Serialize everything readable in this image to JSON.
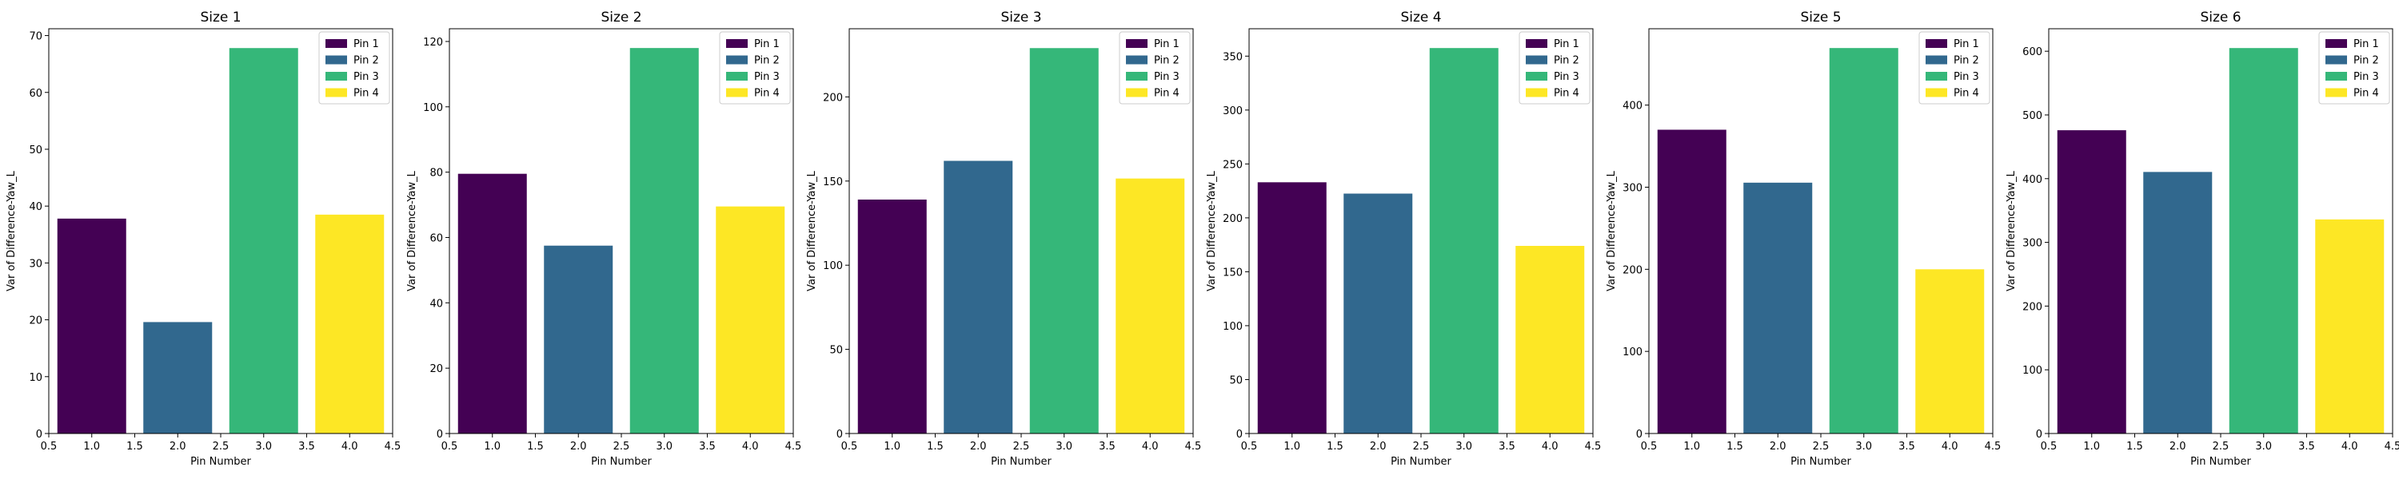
{
  "chart_data": [
    {
      "type": "bar",
      "title": "Size 1",
      "xlabel": "Pin Number",
      "ylabel": "Var of Difference-Yaw_L",
      "x": [
        1,
        2,
        3,
        4
      ],
      "values": [
        37.8,
        19.6,
        67.8,
        38.5
      ],
      "xlim": [
        0.5,
        4.5
      ],
      "ylim": [
        0,
        71.2
      ],
      "xticks": [
        "0.5",
        "1.0",
        "1.5",
        "2.0",
        "2.5",
        "3.0",
        "3.5",
        "4.0",
        "4.5"
      ],
      "yticks": [
        0,
        10,
        20,
        30,
        40,
        50,
        60,
        70
      ],
      "legend": [
        "Pin 1",
        "Pin 2",
        "Pin 3",
        "Pin 4"
      ],
      "legend_position": "top-right"
    },
    {
      "type": "bar",
      "title": "Size 2",
      "xlabel": "Pin Number",
      "ylabel": "Var of Difference-Yaw_L",
      "x": [
        1,
        2,
        3,
        4
      ],
      "values": [
        79.5,
        57.5,
        118.0,
        69.5
      ],
      "xlim": [
        0.5,
        4.5
      ],
      "ylim": [
        0,
        123.9
      ],
      "xticks": [
        "0.5",
        "1.0",
        "1.5",
        "2.0",
        "2.5",
        "3.0",
        "3.5",
        "4.0",
        "4.5"
      ],
      "yticks": [
        0,
        20,
        40,
        60,
        80,
        100,
        120
      ],
      "legend": [
        "Pin 1",
        "Pin 2",
        "Pin 3",
        "Pin 4"
      ],
      "legend_position": "top-right"
    },
    {
      "type": "bar",
      "title": "Size 3",
      "xlabel": "Pin Number",
      "ylabel": "Var of Difference-Yaw_L",
      "x": [
        1,
        2,
        3,
        4
      ],
      "values": [
        139.0,
        162.0,
        229.0,
        151.5
      ],
      "xlim": [
        0.5,
        4.5
      ],
      "ylim": [
        0,
        240.5
      ],
      "xticks": [
        "0.5",
        "1.0",
        "1.5",
        "2.0",
        "2.5",
        "3.0",
        "3.5",
        "4.0",
        "4.5"
      ],
      "yticks": [
        0,
        50,
        100,
        150,
        200
      ],
      "legend": [
        "Pin 1",
        "Pin 2",
        "Pin 3",
        "Pin 4"
      ],
      "legend_position": "top-right"
    },
    {
      "type": "bar",
      "title": "Size 4",
      "xlabel": "Pin Number",
      "ylabel": "Var of Difference-Yaw_L",
      "x": [
        1,
        2,
        3,
        4
      ],
      "values": [
        233.0,
        222.5,
        357.5,
        174.0
      ],
      "xlim": [
        0.5,
        4.5
      ],
      "ylim": [
        0,
        375.4
      ],
      "xticks": [
        "0.5",
        "1.0",
        "1.5",
        "2.0",
        "2.5",
        "3.0",
        "3.5",
        "4.0",
        "4.5"
      ],
      "yticks": [
        0,
        50,
        100,
        150,
        200,
        250,
        300,
        350
      ],
      "legend": [
        "Pin 1",
        "Pin 2",
        "Pin 3",
        "Pin 4"
      ],
      "legend_position": "top-right"
    },
    {
      "type": "bar",
      "title": "Size 5",
      "xlabel": "Pin Number",
      "ylabel": "Var of Difference-Yaw_L",
      "x": [
        1,
        2,
        3,
        4
      ],
      "values": [
        370.0,
        305.5,
        469.5,
        200.0
      ],
      "xlim": [
        0.5,
        4.5
      ],
      "ylim": [
        0,
        493.0
      ],
      "xticks": [
        "0.5",
        "1.0",
        "1.5",
        "2.0",
        "2.5",
        "3.0",
        "3.5",
        "4.0",
        "4.5"
      ],
      "yticks": [
        0,
        100,
        200,
        300,
        400
      ],
      "legend": [
        "Pin 1",
        "Pin 2",
        "Pin 3",
        "Pin 4"
      ],
      "legend_position": "top-right"
    },
    {
      "type": "bar",
      "title": "Size 6",
      "xlabel": "Pin Number",
      "ylabel": "Var of Difference-Yaw_L",
      "x": [
        1,
        2,
        3,
        4
      ],
      "values": [
        476.0,
        410.5,
        605.0,
        336.0
      ],
      "xlim": [
        0.5,
        4.5
      ],
      "ylim": [
        0,
        635.3
      ],
      "xticks": [
        "0.5",
        "1.0",
        "1.5",
        "2.0",
        "2.5",
        "3.0",
        "3.5",
        "4.0",
        "4.5"
      ],
      "yticks": [
        0,
        100,
        200,
        300,
        400,
        500,
        600
      ],
      "legend": [
        "Pin 1",
        "Pin 2",
        "Pin 3",
        "Pin 4"
      ],
      "legend_position": "top-right"
    }
  ],
  "colors": [
    "#440154",
    "#31688e",
    "#35b779",
    "#fde725"
  ]
}
